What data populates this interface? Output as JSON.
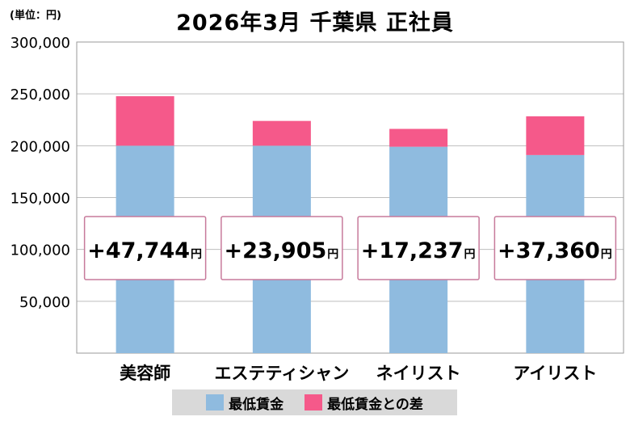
{
  "unit_label": "(単位：円)",
  "chart_data": {
    "type": "bar",
    "stacked": true,
    "title": "2026年3月 千葉県 正社員",
    "categories": [
      "美容師",
      "エステティシャン",
      "ネイリスト",
      "アイリスト"
    ],
    "series": [
      {
        "name": "最低賃金",
        "values": [
          200000,
          200000,
          199000,
          191000
        ],
        "color": "#8fbbdf"
      },
      {
        "name": "最低賃金との差",
        "values": [
          47744,
          23905,
          17237,
          37360
        ],
        "color": "#f5598a"
      }
    ],
    "diff_labels": [
      "+47,744",
      "+23,905",
      "+17,237",
      "+37,360"
    ],
    "diff_unit": "円",
    "yticks": [
      "300,000",
      "250,000",
      "200,000",
      "150,000",
      "100,000",
      "50,000"
    ],
    "ylim": [
      0,
      300000
    ],
    "grid": true,
    "legend_position": "bottom"
  }
}
